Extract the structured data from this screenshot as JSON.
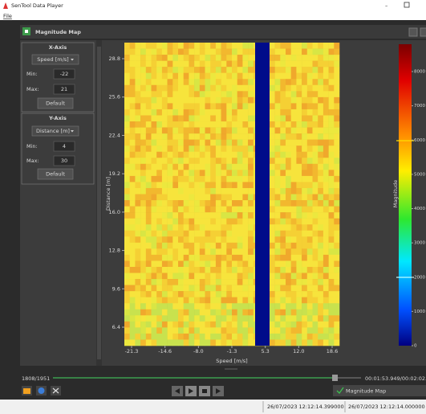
{
  "window": {
    "title": "SenTool Data Player",
    "menu": "File"
  },
  "panel": {
    "title": "Magnitude Map"
  },
  "x_axis": {
    "title": "X-Axis",
    "unit": "Speed [m/s]",
    "min_label": "Min:",
    "min": -22,
    "max_label": "Max:",
    "max": 21,
    "button": "Default"
  },
  "y_axis": {
    "title": "Y-Axis",
    "unit": "Distance [m]",
    "min_label": "Min:",
    "min": 4,
    "max_label": "Max:",
    "max": 30,
    "button": "Default"
  },
  "plot": {
    "x_label": "Speed [m/s]",
    "y_label": "Distance [m]",
    "x_ticks": [
      "-21.3",
      "-14.6",
      "-8.0",
      "-1.3",
      "5.3",
      "12.0",
      "18.6"
    ],
    "y_ticks": [
      "28.8",
      "25.6",
      "22.4",
      "19.2",
      "16.0",
      "12.8",
      "9.6",
      "6.4"
    ],
    "colorbar_label": "Magnitude",
    "colorbar_ticks": [
      8000,
      7000,
      6000,
      5000,
      4000,
      3000,
      2000,
      1000,
      0
    ]
  },
  "playback": {
    "frame": "1808/1951",
    "time": "00:01:53.949/00:02:02.0",
    "layer": "Magnitude Map"
  },
  "status": [
    "26/07/2023 12:12:14.399000",
    "26/07/2023 12:12:14.000000"
  ]
}
